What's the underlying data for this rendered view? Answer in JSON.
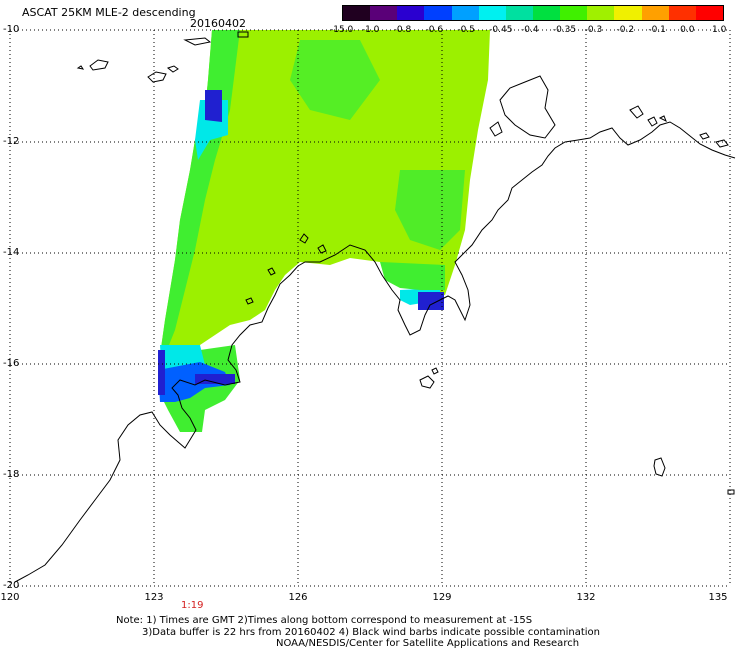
{
  "header": {
    "title": "ASCAT 25KM MLE-2 descending",
    "date": "20160402"
  },
  "colorbar": {
    "labels": [
      "-15.0",
      "-1.0",
      "-0.8",
      "-0.6",
      "-0.5",
      "-0.45",
      "-0.4",
      "-0.35",
      "-0.3",
      "-0.2",
      "-0.1",
      "0.0",
      "1.0"
    ],
    "colors": [
      "#200020",
      "#5a0078",
      "#2a00d0",
      "#0040ff",
      "#00a0ff",
      "#00f0f0",
      "#00e0a0",
      "#00e040",
      "#40f000",
      "#a0f000",
      "#f0f000",
      "#ffa000",
      "#ff3000",
      "#ff0000"
    ]
  },
  "axes": {
    "x_ticks": [
      "120",
      "123",
      "126",
      "129",
      "132",
      "135"
    ],
    "y_ticks": [
      "-10",
      "-12",
      "-14",
      "-16",
      "-18",
      "-20"
    ]
  },
  "time_label": "1:19",
  "notes": {
    "line1": "Note: 1) Times are GMT 2)Times along bottom correspond to measurement at -15S",
    "line2": "3)Data buffer is 22 hrs from 20160402 4) Black wind barbs indicate possible contamination",
    "line3": "NOAA/NESDIS/Center for Satellite Applications and Research"
  },
  "map_colors": {
    "land_outline": "#000000",
    "gridline": "#000000",
    "swath_main": "#9cf000",
    "swath_green": "#40ee30",
    "swath_cyan": "#00e8e8",
    "swath_blue": "#0060ff",
    "swath_darkblue": "#2020d0"
  }
}
